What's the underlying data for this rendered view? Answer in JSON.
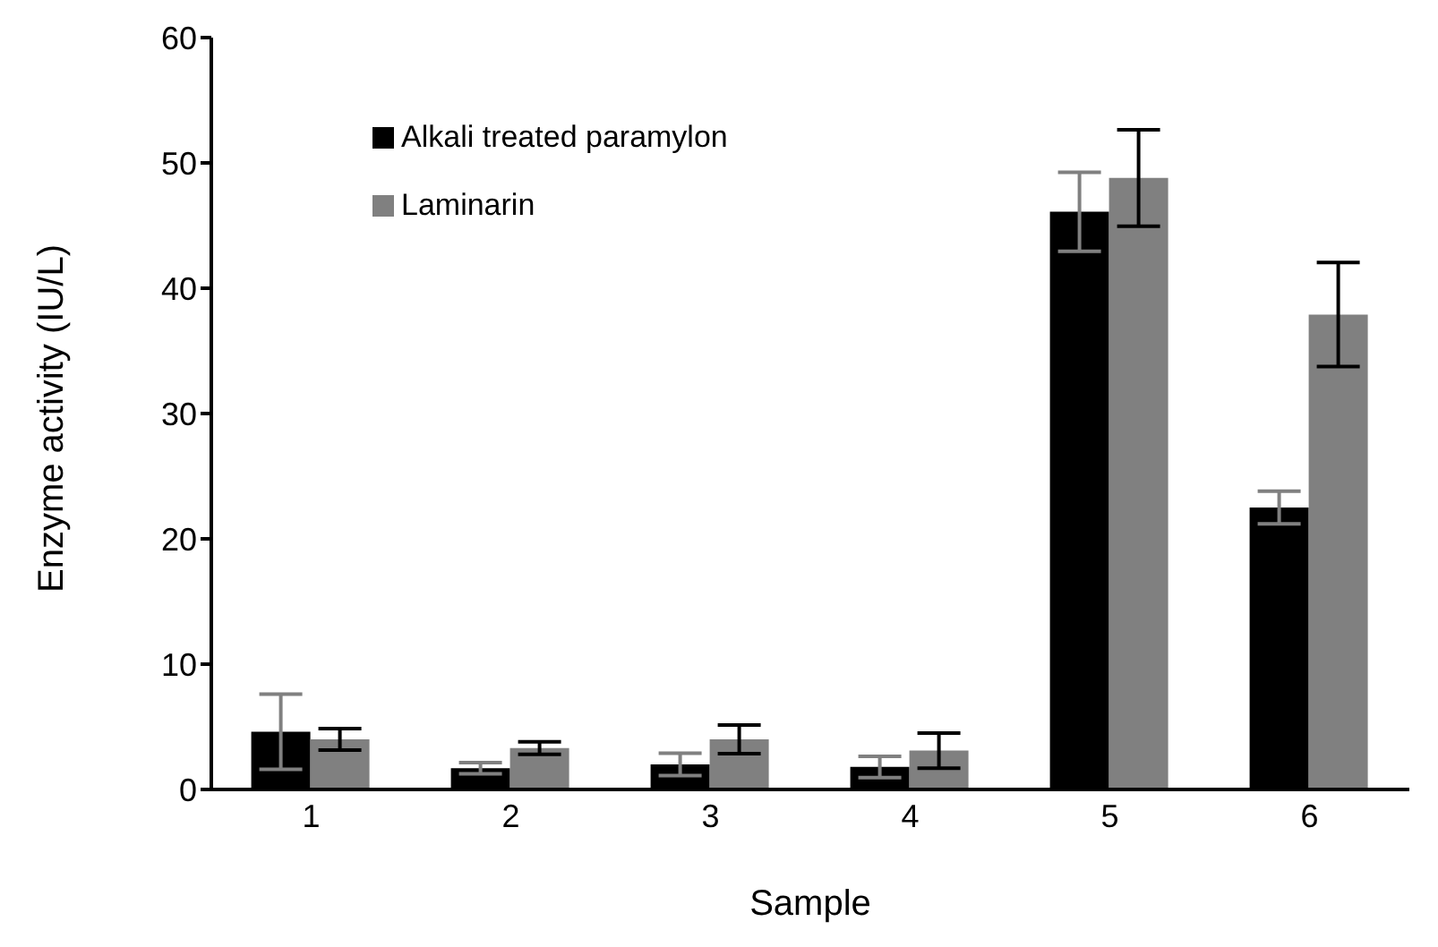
{
  "chart_data": {
    "type": "bar",
    "xlabel": "Sample",
    "ylabel": "Enzyme activity (IU/L)",
    "categories": [
      "1",
      "2",
      "3",
      "4",
      "5",
      "6"
    ],
    "series": [
      {
        "name": "Alkali treated paramylon",
        "color": "#000000",
        "values": [
          4.6,
          1.7,
          2.0,
          1.8,
          46.1,
          22.5
        ],
        "errors": [
          3.0,
          0.45,
          0.9,
          0.85,
          3.15,
          1.3
        ]
      },
      {
        "name": "Laminarin",
        "color": "#808080",
        "values": [
          4.0,
          3.3,
          4.0,
          3.1,
          48.8,
          37.9
        ],
        "errors": [
          0.85,
          0.5,
          1.15,
          1.4,
          3.85,
          4.15
        ]
      }
    ],
    "ylim": [
      0,
      60
    ],
    "yticks": [
      0,
      10,
      20,
      30,
      40,
      50,
      60
    ],
    "grid": false,
    "legend": "top left"
  }
}
